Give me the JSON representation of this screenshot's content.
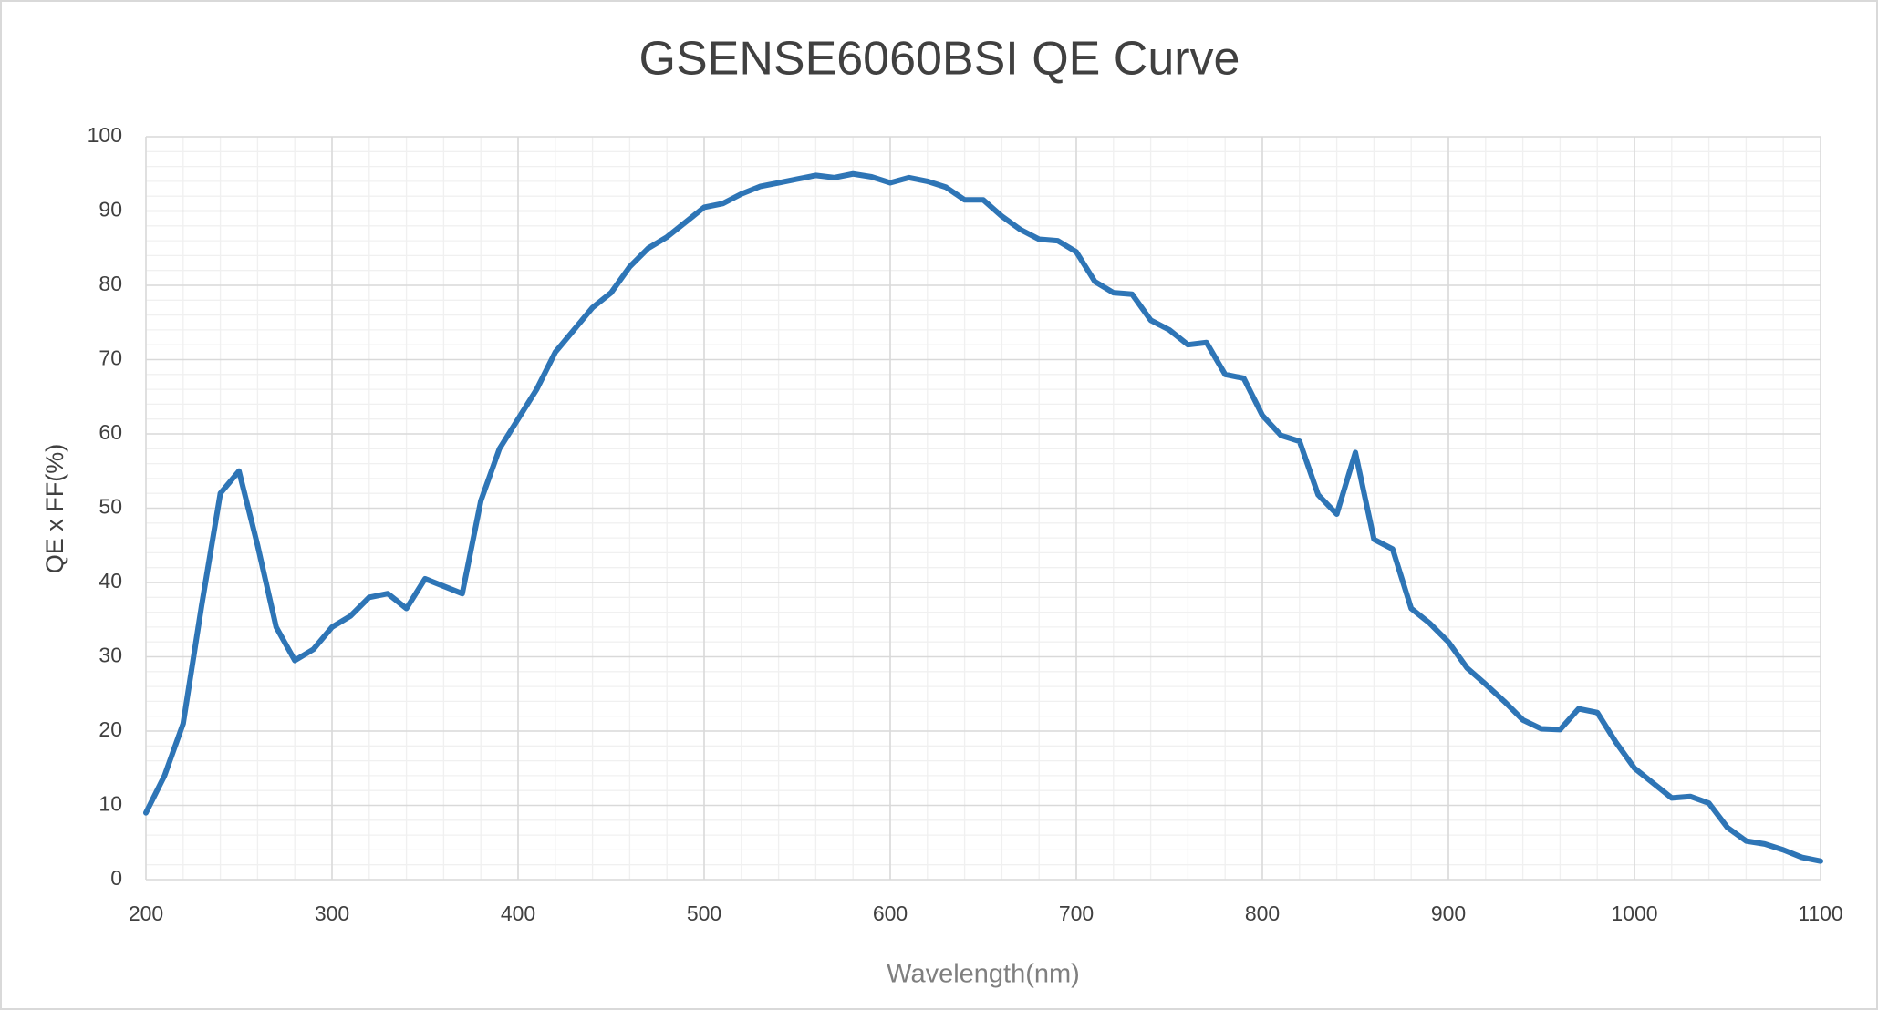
{
  "chart_data": {
    "type": "line",
    "title": "GSENSE6060BSI QE  Curve",
    "x_label": "Wavelength(nm)",
    "y_label": "QE x FF(%)",
    "x": [
      200,
      210,
      220,
      230,
      240,
      250,
      260,
      270,
      280,
      290,
      300,
      310,
      320,
      330,
      340,
      350,
      360,
      370,
      380,
      390,
      400,
      410,
      420,
      430,
      440,
      450,
      460,
      470,
      480,
      490,
      500,
      510,
      520,
      530,
      540,
      550,
      560,
      570,
      580,
      590,
      600,
      610,
      620,
      630,
      640,
      650,
      660,
      670,
      680,
      690,
      700,
      710,
      720,
      730,
      740,
      750,
      760,
      770,
      780,
      790,
      800,
      810,
      820,
      830,
      840,
      850,
      860,
      870,
      880,
      890,
      900,
      910,
      920,
      930,
      940,
      950,
      960,
      970,
      980,
      990,
      1000,
      1010,
      1020,
      1030,
      1040,
      1050,
      1060,
      1070,
      1080,
      1090,
      1100
    ],
    "series": [
      {
        "name": "QE",
        "color": "#2e75b6",
        "values": [
          9,
          14,
          21,
          37,
          52,
          55,
          45,
          34,
          29.5,
          31,
          34,
          35.5,
          38,
          38.5,
          36.5,
          40.5,
          39.5,
          38.5,
          51,
          58,
          62,
          66,
          71,
          74,
          77,
          79,
          82.5,
          85,
          86.5,
          88.5,
          90.5,
          91,
          92.3,
          93.3,
          93.8,
          94.3,
          94.8,
          94.5,
          95,
          94.6,
          93.8,
          94.5,
          94,
          93.2,
          91.5,
          91.5,
          89.3,
          87.5,
          86.2,
          86,
          84.5,
          80.5,
          79,
          78.8,
          75.3,
          74,
          72,
          72.3,
          68,
          67.5,
          62.5,
          59.8,
          59,
          51.8,
          49.2,
          57.5,
          45.8,
          44.5,
          36.5,
          34.5,
          32,
          28.5,
          26.3,
          24,
          21.5,
          20.3,
          20.2,
          23,
          22.5,
          18.5,
          15,
          13,
          11,
          11.2,
          10.3,
          7,
          5.2,
          4.8,
          4,
          3,
          2.5
        ]
      }
    ],
    "xlim": [
      200,
      1100
    ],
    "xticks": [
      200,
      300,
      400,
      500,
      600,
      700,
      800,
      900,
      1000,
      1100
    ],
    "ylim": [
      0,
      100
    ],
    "yticks": [
      0,
      10,
      20,
      30,
      40,
      50,
      60,
      70,
      80,
      90,
      100
    ],
    "grid": true
  }
}
